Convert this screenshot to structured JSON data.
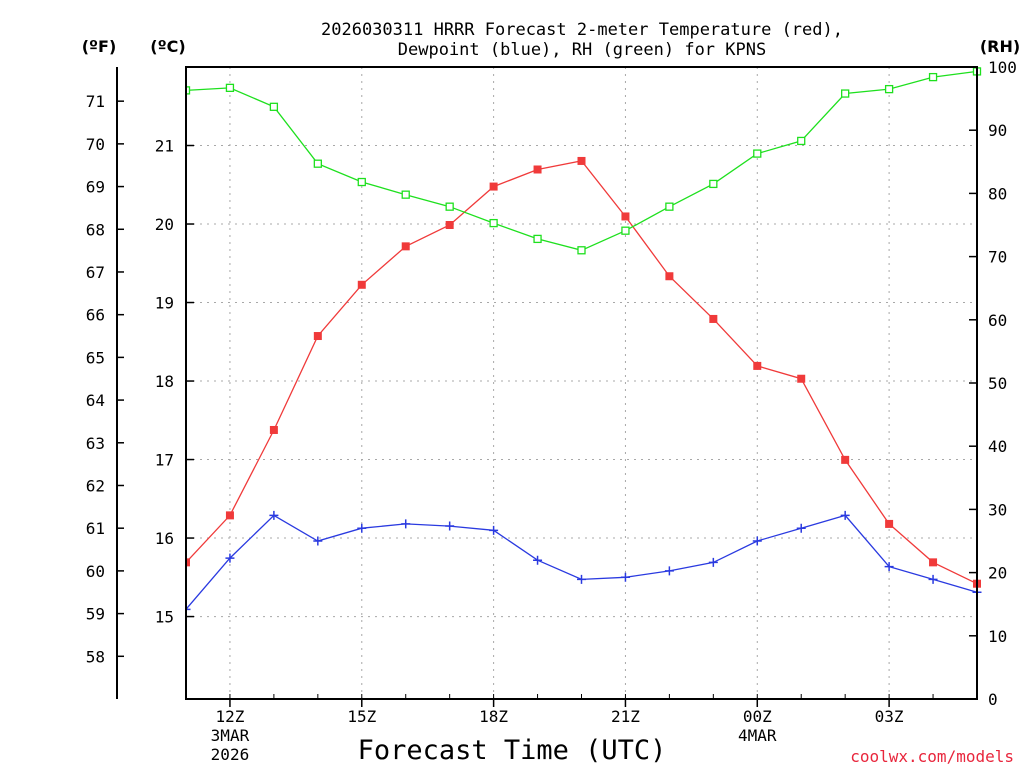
{
  "chart_data": {
    "type": "line",
    "title_line1": "2026030311 HRRR Forecast 2-meter Temperature (red),",
    "title_line2": "Dewpoint (blue), RH (green) for KPNS",
    "xlabel": "Forecast Time (UTC)",
    "credit": "coolwx.com/models",
    "units": {
      "fahrenheit": "(ºF)",
      "celsius": "(ºC)",
      "rh": "(RH)"
    },
    "fahrenheit_axis": {
      "range": [
        57,
        71.8
      ],
      "ticks": [
        "58",
        "59",
        "60",
        "61",
        "62",
        "63",
        "64",
        "65",
        "66",
        "67",
        "68",
        "69",
        "70",
        "71"
      ]
    },
    "celsius_axis": {
      "range": [
        13.95,
        22.0
      ],
      "ticks": [
        "15",
        "16",
        "17",
        "18",
        "19",
        "20",
        "21"
      ]
    },
    "rh_axis": {
      "range": [
        0,
        100
      ],
      "ticks": [
        "0",
        "10",
        "20",
        "30",
        "40",
        "50",
        "60",
        "70",
        "80",
        "90",
        "100"
      ]
    },
    "x_hours": [
      11,
      12,
      13,
      14,
      15,
      16,
      17,
      18,
      19,
      20,
      21,
      22,
      23,
      24,
      25,
      26,
      27,
      28,
      29
    ],
    "x_range": [
      11,
      29
    ],
    "x_ticks": [
      {
        "hour": 12,
        "label": "12Z",
        "sub1": "3MAR",
        "sub2": "2026"
      },
      {
        "hour": 15,
        "label": "15Z",
        "sub1": "",
        "sub2": ""
      },
      {
        "hour": 18,
        "label": "18Z",
        "sub1": "",
        "sub2": ""
      },
      {
        "hour": 21,
        "label": "21Z",
        "sub1": "",
        "sub2": ""
      },
      {
        "hour": 24,
        "label": "00Z",
        "sub1": "4MAR",
        "sub2": ""
      },
      {
        "hour": 27,
        "label": "03Z",
        "sub1": "",
        "sub2": ""
      }
    ],
    "series": [
      {
        "name": "Temperature",
        "unit": "F",
        "color": "#f03a3a",
        "marker": "filled-square",
        "values": [
          60.2,
          61.3,
          63.3,
          65.5,
          66.7,
          67.6,
          68.1,
          69.0,
          69.4,
          69.6,
          68.3,
          66.9,
          65.9,
          64.8,
          64.5,
          62.6,
          61.1,
          60.2,
          59.7
        ]
      },
      {
        "name": "Dewpoint",
        "unit": "F",
        "color": "#2a3ae0",
        "marker": "plus",
        "values": [
          59.1,
          60.3,
          61.3,
          60.7,
          61.0,
          61.1,
          61.05,
          60.95,
          60.25,
          59.8,
          59.85,
          60.0,
          60.2,
          60.7,
          61.0,
          61.3,
          60.1,
          59.8,
          59.5
        ]
      },
      {
        "name": "RH",
        "unit": "%",
        "color": "#1ee01e",
        "marker": "open-square",
        "values": [
          96.3,
          96.7,
          93.7,
          84.7,
          81.8,
          79.8,
          77.9,
          75.3,
          72.8,
          71.0,
          74.1,
          77.9,
          81.5,
          86.3,
          88.3,
          95.8,
          96.5,
          98.4,
          99.3
        ]
      }
    ]
  }
}
